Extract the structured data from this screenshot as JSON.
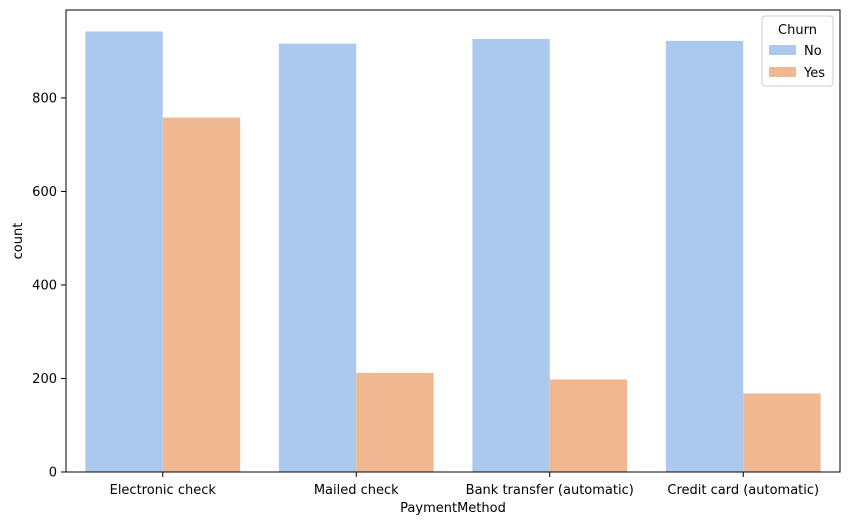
{
  "chart_data": {
    "type": "bar",
    "xlabel": "PaymentMethod",
    "ylabel": "count",
    "categories": [
      "Electronic check",
      "Mailed check",
      "Bank transfer (automatic)",
      "Credit card (automatic)"
    ],
    "series": [
      {
        "name": "No",
        "values": [
          942,
          916,
          926,
          922
        ],
        "color": "#abc9ee"
      },
      {
        "name": "Yes",
        "values": [
          758,
          212,
          198,
          168
        ],
        "color": "#f0b891"
      }
    ],
    "ylim": [
      0,
      988
    ],
    "yticks": [
      0,
      200,
      400,
      600,
      800
    ],
    "grid": false,
    "legend": {
      "title": "Churn",
      "placement": "top-right"
    }
  }
}
